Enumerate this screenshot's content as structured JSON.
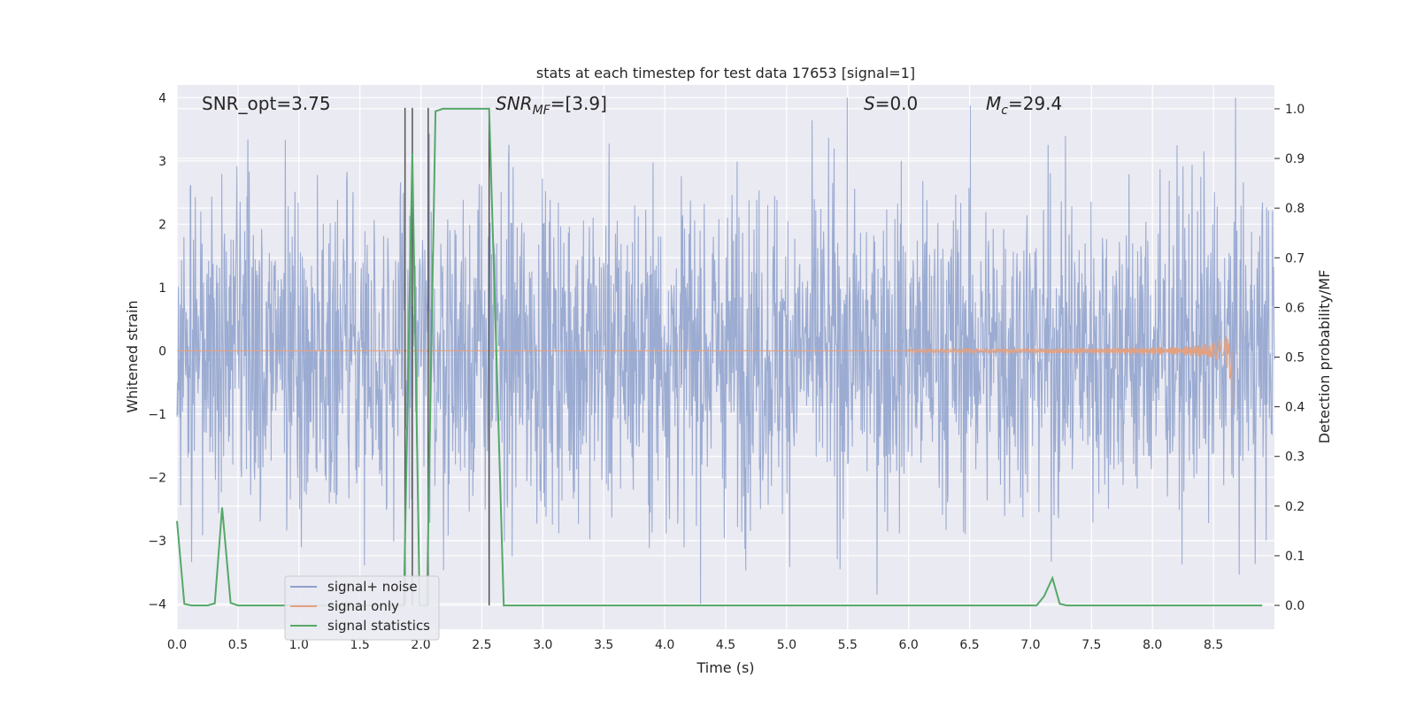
{
  "chart_data": {
    "type": "line",
    "title": "stats at each timestep for test data 17653 [signal=1]",
    "xlabel": "Time (s)",
    "ylabel_left": "Whitened strain",
    "ylabel_right": "Detection probability/MF",
    "xlim": [
      0,
      9.0
    ],
    "ylim_left": [
      -4.4,
      4.2
    ],
    "ylim_right": [
      -0.048,
      1.048
    ],
    "x_ticks": [
      "0.0",
      "0.5",
      "1.0",
      "1.5",
      "2.0",
      "2.5",
      "3.0",
      "3.5",
      "4.0",
      "4.5",
      "5.0",
      "5.5",
      "6.0",
      "6.5",
      "7.0",
      "7.5",
      "8.0",
      "8.5"
    ],
    "y_ticks_left": [
      "−4",
      "−3",
      "−2",
      "−1",
      "0",
      "1",
      "2",
      "3",
      "4"
    ],
    "y_ticks_right": [
      "0.0",
      "0.1",
      "0.2",
      "0.3",
      "0.4",
      "0.5",
      "0.6",
      "0.7",
      "0.8",
      "0.9",
      "1.0"
    ],
    "grid": true,
    "legend_position": "lower-left",
    "annotations": {
      "snr_opt": "SNR_opt=3.75",
      "snr_mf_main": "SNR",
      "snr_mf_sub": "MF",
      "snr_mf_value": "=[3.9]",
      "s_main": "S",
      "s_value": "=0.0",
      "mc_main": "M",
      "mc_sub": "c",
      "mc_value": "=29.4"
    },
    "vertical_lines_x": [
      1.87,
      1.93,
      2.06,
      2.56
    ],
    "series": [
      {
        "name": "signal+ noise",
        "color": "#8da0cb",
        "axis": "left",
        "description": "whitened noise, mostly within ±2 with peaks to about ±4",
        "envelope": {
          "typical_amplitude": 2.0,
          "max_amplitude": 4.0
        }
      },
      {
        "name": "signal only",
        "color": "#e5a07e",
        "axis": "left",
        "description": "chirp growing to merger",
        "chirp": {
          "start_x": 6.0,
          "merger_x": 8.65,
          "peak_amplitude": 0.95
        }
      },
      {
        "name": "signal statistics",
        "color": "#55a868",
        "axis": "right",
        "x": [
          0.0,
          0.06,
          0.12,
          0.19,
          0.25,
          0.31,
          0.37,
          0.44,
          0.5,
          1.8,
          1.86,
          1.93,
          1.99,
          2.05,
          2.12,
          2.18,
          2.5,
          2.56,
          2.62,
          2.68,
          7.05,
          7.11,
          7.18,
          7.24,
          7.3,
          8.9
        ],
        "values": [
          0.17,
          0.003,
          0.0,
          0.0,
          0.0,
          0.004,
          0.197,
          0.005,
          0.0,
          0.0,
          0.0,
          0.91,
          0.0,
          0.0,
          0.995,
          1.0,
          1.0,
          1.0,
          0.5,
          0.0,
          0.0,
          0.018,
          0.055,
          0.003,
          0.0,
          0.0
        ]
      }
    ]
  }
}
